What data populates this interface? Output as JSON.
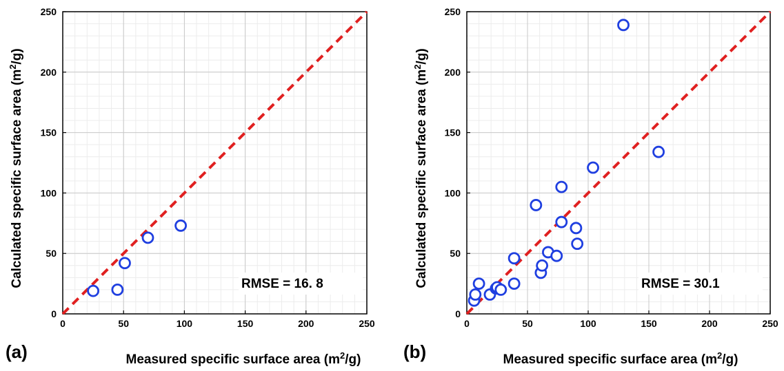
{
  "chart_data": [
    {
      "type": "scatter",
      "panel_label": "(a)",
      "xlabel_pre": "Measured specific surface area (m",
      "xlabel_sup": "2",
      "xlabel_post": "/g)",
      "ylabel_pre": "Calculated specific surface area (m",
      "ylabel_sup": "2",
      "ylabel_post": "/g)",
      "xlim": [
        0,
        250
      ],
      "ylim": [
        0,
        250
      ],
      "xticks": [
        0,
        50,
        100,
        150,
        200,
        250
      ],
      "yticks": [
        0,
        50,
        100,
        150,
        200,
        250
      ],
      "grid": true,
      "annotation": "RMSE = 16. 8",
      "reference_line": {
        "x": [
          0,
          250
        ],
        "y": [
          0,
          250
        ],
        "style": "dashed"
      },
      "points": {
        "x": [
          25,
          45,
          51,
          70,
          97
        ],
        "y": [
          19,
          20,
          42,
          63,
          73
        ]
      }
    },
    {
      "type": "scatter",
      "panel_label": "(b)",
      "xlabel_pre": "Measured specific surface area (m",
      "xlabel_sup": "2",
      "xlabel_post": "/g)",
      "ylabel_pre": "Calculated specific surface area (m",
      "ylabel_sup": "2",
      "ylabel_post": "/g)",
      "xlim": [
        0,
        250
      ],
      "ylim": [
        0,
        250
      ],
      "xticks": [
        0,
        50,
        100,
        150,
        200,
        250
      ],
      "yticks": [
        0,
        50,
        100,
        150,
        200,
        250
      ],
      "grid": true,
      "annotation": "RMSE = 30.1",
      "reference_line": {
        "x": [
          0,
          250
        ],
        "y": [
          0,
          250
        ],
        "style": "dashed"
      },
      "points": {
        "x": [
          6,
          7,
          10,
          19,
          24,
          25,
          28,
          39,
          39,
          57,
          61,
          62,
          67,
          74,
          78,
          78,
          90,
          91,
          104,
          129,
          158
        ],
        "y": [
          11,
          16,
          25,
          16,
          21,
          22,
          20,
          46,
          25,
          90,
          34,
          40,
          51,
          48,
          105,
          76,
          71,
          58,
          121,
          239,
          134
        ]
      }
    }
  ],
  "colors": {
    "marker": "#1f3fe0",
    "reference_line": "#e02020",
    "grid_major": "#c8c8c8",
    "grid_minor": "#ececec",
    "axis": "#000000"
  }
}
